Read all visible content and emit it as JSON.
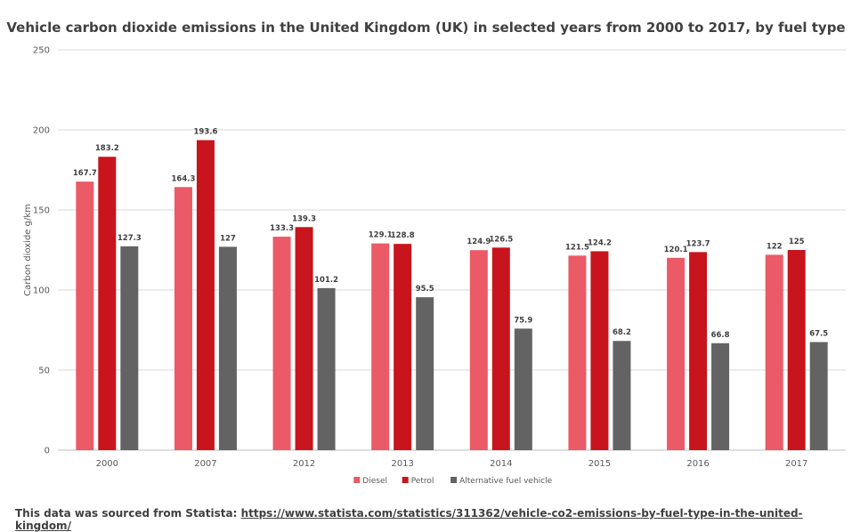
{
  "chart_data": {
    "type": "bar",
    "title": "Vehicle carbon dioxide emissions in the United Kingdom (UK) in selected years from 2000 to 2017, by fuel type",
    "xlabel": "",
    "ylabel": "Carbon dioxide g/km",
    "ylim": [
      0,
      250
    ],
    "yticks": [
      0,
      50,
      100,
      150,
      200,
      250
    ],
    "grid": true,
    "legend_position": "bottom",
    "categories": [
      "2000",
      "2007",
      "2012",
      "2013",
      "2014",
      "2015",
      "2016",
      "2017"
    ],
    "series": [
      {
        "name": "Diesel",
        "color": "#eb5a67",
        "values": [
          167.7,
          164.3,
          133.3,
          129.1,
          124.9,
          121.5,
          120.1,
          122
        ]
      },
      {
        "name": "Petrol",
        "color": "#c8141c",
        "values": [
          183.2,
          193.6,
          139.3,
          128.8,
          126.5,
          124.2,
          123.7,
          125
        ]
      },
      {
        "name": "Alternative fuel vehicle",
        "color": "#636363",
        "values": [
          127.3,
          127,
          101.2,
          95.5,
          75.9,
          68.2,
          66.8,
          67.5
        ]
      }
    ]
  },
  "footer": {
    "source_prefix": "This data was sourced from Statista: ",
    "source_link": "https://www.statista.com/statistics/311362/vehicle-co2-emissions-by-fuel-type-in-the-united-kingdom/"
  }
}
